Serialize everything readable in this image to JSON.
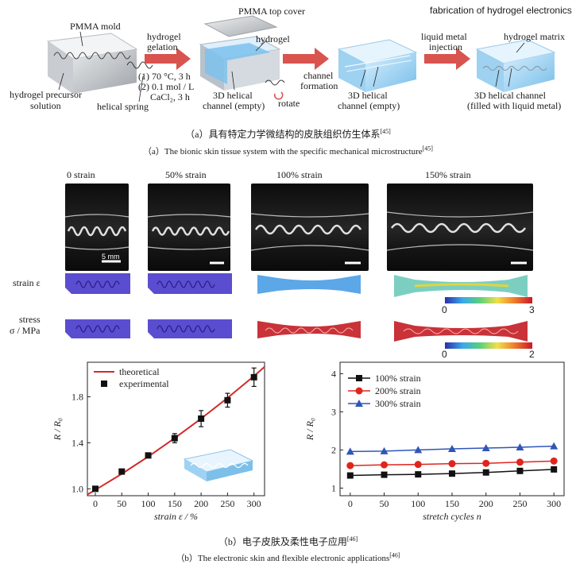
{
  "panel_a": {
    "labels": {
      "pmma_mold": "PMMA mold",
      "hydrogel_precursor": "hydrogel precursor",
      "solution": "solution",
      "helical_spring": "helical spring",
      "hydrogel_gelation_1": "hydrogel",
      "hydrogel_gelation_2": "gelation",
      "cond1": "(1) 70 °C, 3 h",
      "cond2a": "(2) 0.1 mol / L",
      "cond2b": "CaCl₂, 3 h",
      "pmma_top_cover": "PMMA top cover",
      "hydrogel": "hydrogel",
      "helical_3d_empty_1a": "3D helical",
      "helical_3d_empty_1b": "channel (empty)",
      "rotate": "rotate",
      "channel_formation_1": "channel",
      "channel_formation_2": "formation",
      "helical_3d_empty_2a": "3D helical",
      "helical_3d_empty_2b": "channel (empty)",
      "fabrication_title": "fabrication of hydrogel electronics",
      "liquid_metal_1": "liquid metal",
      "liquid_metal_2": "injection",
      "hydrogel_matrix": "hydrogel matrix",
      "filled_1": "3D helical channel",
      "filled_2": "(filled with liquid metal)"
    },
    "caption_cn": "（a）具有特定力学微结构的皮肤组织仿生体系",
    "caption_cn_ref": "[45]",
    "caption_en": "（a）The bionic skin tissue system with the specific mechanical microstructure",
    "caption_en_ref": "[45]"
  },
  "panel_b": {
    "strain_headers": [
      "0 strain",
      "50% strain",
      "100% strain",
      "150% strain"
    ],
    "scale_bar": "5 mm",
    "row_strain": "strain ε",
    "row_stress_1": "stress",
    "row_stress_2": "σ / MPa",
    "colorbar_strain": {
      "min": "0",
      "max": "3"
    },
    "colorbar_stress": {
      "min": "0",
      "max": "2"
    },
    "caption_cn": "（b）电子皮肤及柔性电子应用",
    "caption_cn_ref": "[46]",
    "caption_en": "（b）The electronic skin and flexible electronic applications",
    "caption_en_ref": "[46]"
  },
  "colors": {
    "arrow": "#d9534f",
    "theory_line": "#d42a2a",
    "s100": "#111111",
    "s200": "#e0251e",
    "s300": "#2f56b8",
    "hydrogel_blue": "#8fc9ee"
  },
  "chart_data": [
    {
      "type": "line",
      "xlabel": "strain ε / %",
      "ylabel": "R / R₀",
      "xlim": [
        -15,
        320
      ],
      "ylim": [
        0.94,
        2.1
      ],
      "xticks": [
        0,
        50,
        100,
        150,
        200,
        250,
        300
      ],
      "yticks": [
        1.0,
        1.4,
        1.8
      ],
      "ytick_labels": [
        "1.0",
        "1.4",
        "1.8"
      ],
      "series": [
        {
          "name": "theoretical",
          "kind": "line",
          "x": [
            -15,
            0,
            50,
            100,
            150,
            200,
            250,
            300,
            320
          ],
          "values": [
            0.95,
            0.99,
            1.13,
            1.28,
            1.44,
            1.61,
            1.79,
            1.98,
            2.06
          ]
        },
        {
          "name": "experimental",
          "kind": "scatter",
          "x": [
            0,
            50,
            100,
            150,
            200,
            250,
            300
          ],
          "values": [
            1.0,
            1.15,
            1.29,
            1.44,
            1.61,
            1.77,
            1.97
          ],
          "err": [
            0.01,
            0.02,
            0.02,
            0.04,
            0.07,
            0.06,
            0.08
          ]
        }
      ],
      "legend": "top-left"
    },
    {
      "type": "line",
      "xlabel": "stretch cycles n",
      "ylabel": "R / R₀",
      "xlim": [
        -15,
        315
      ],
      "ylim": [
        0.8,
        4.3
      ],
      "xticks": [
        0,
        50,
        100,
        150,
        200,
        250,
        300
      ],
      "yticks": [
        1,
        2,
        3,
        4
      ],
      "series": [
        {
          "name": "100% strain",
          "marker": "square",
          "x": [
            0,
            50,
            100,
            150,
            200,
            250,
            300
          ],
          "values": [
            1.33,
            1.35,
            1.36,
            1.38,
            1.41,
            1.45,
            1.49
          ]
        },
        {
          "name": "200% strain",
          "marker": "circle",
          "x": [
            0,
            50,
            100,
            150,
            200,
            250,
            300
          ],
          "values": [
            1.59,
            1.61,
            1.62,
            1.64,
            1.65,
            1.68,
            1.71
          ]
        },
        {
          "name": "300% strain",
          "marker": "triangle",
          "x": [
            0,
            50,
            100,
            150,
            200,
            250,
            300
          ],
          "values": [
            1.96,
            1.97,
            2.0,
            2.03,
            2.05,
            2.07,
            2.1
          ]
        }
      ],
      "legend": "top-left"
    }
  ]
}
